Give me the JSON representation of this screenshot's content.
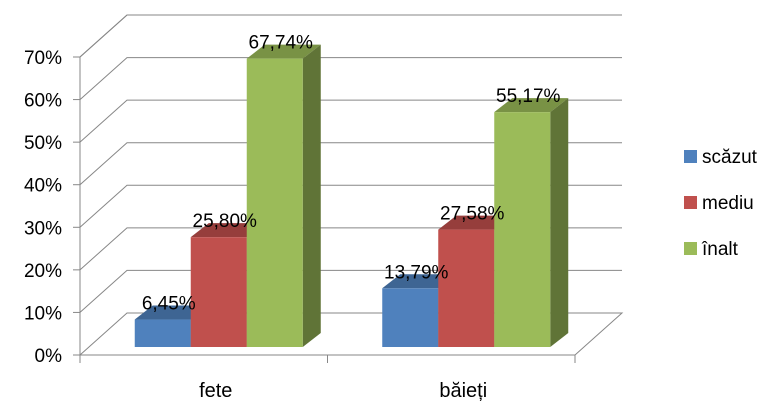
{
  "chart_data": {
    "type": "bar",
    "categories": [
      "fete",
      "băieți"
    ],
    "series": [
      {
        "name": "scăzut",
        "values": [
          6.45,
          13.79
        ],
        "labels": [
          "6,45%",
          "13,79%"
        ],
        "color": "#4F81BD"
      },
      {
        "name": "mediu",
        "values": [
          25.8,
          27.58
        ],
        "labels": [
          "25,80%",
          "27,58%"
        ],
        "color": "#C0504D"
      },
      {
        "name": "înalt",
        "values": [
          67.74,
          55.17
        ],
        "labels": [
          "67,74%",
          "55,17%"
        ],
        "color": "#9BBB59"
      }
    ],
    "yticks": [
      "0%",
      "10%",
      "20%",
      "30%",
      "40%",
      "50%",
      "60%",
      "70%"
    ],
    "ylim": [
      0,
      70
    ],
    "grid": true,
    "legend_position": "right",
    "three_d": true
  }
}
